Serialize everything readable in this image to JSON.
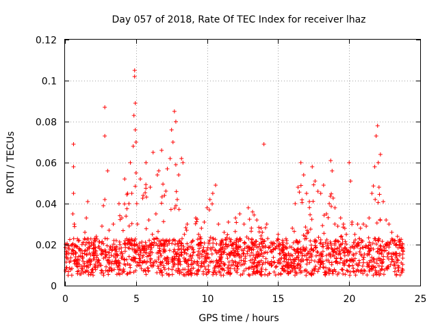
{
  "chart_data": {
    "type": "scatter",
    "title": "Day 057 of 2018, Rate Of TEC Index for receiver lhaz",
    "xlabel": "GPS time / hours",
    "ylabel": "ROTI / TECUs",
    "xlim": [
      0,
      25
    ],
    "ylim": [
      0,
      0.12
    ],
    "x_ticks": [
      0,
      5,
      10,
      15,
      20,
      25
    ],
    "y_ticks": [
      0,
      0.02,
      0.04,
      0.06,
      0.08,
      0.1,
      0.12
    ],
    "x_tick_labels": [
      "0",
      "5",
      "10",
      "15",
      "20",
      "25"
    ],
    "y_tick_labels": [
      "0",
      "0.02",
      "0.04",
      "0.06",
      "0.08",
      "0.1",
      "0.12"
    ],
    "grid": true,
    "marker": "+",
    "color": "#ff0000",
    "series": [
      {
        "name": "ROTI",
        "x": [
          0.1,
          0.2,
          0.3,
          0.4,
          0.5,
          0.55,
          0.6,
          0.6,
          0.6,
          0.65,
          0.7,
          0.75,
          0.8,
          1.0,
          1.2,
          1.4,
          1.5,
          1.6,
          1.7,
          1.8,
          2.0,
          2.2,
          2.4,
          2.6,
          2.7,
          2.8,
          2.8,
          3.0,
          3.1,
          3.2,
          3.4,
          3.6,
          3.8,
          4.0,
          4.2,
          4.4,
          4.5,
          4.6,
          4.7,
          4.8,
          4.85,
          4.9,
          4.9,
          4.95,
          4.95,
          5.0,
          5.0,
          5.05,
          5.1,
          5.3,
          5.5,
          5.7,
          5.9,
          6.0,
          6.2,
          6.4,
          6.5,
          6.6,
          6.8,
          7.0,
          7.2,
          7.4,
          7.5,
          7.6,
          7.7,
          7.8,
          7.8,
          7.9,
          8.0,
          8.2,
          8.3,
          8.4,
          8.6,
          8.8,
          9.0,
          9.2,
          9.4,
          9.6,
          9.8,
          10.0,
          10.2,
          10.4,
          10.6,
          10.8,
          11.0,
          11.2,
          11.5,
          11.8,
          12.0,
          12.3,
          12.6,
          12.9,
          13.2,
          13.5,
          13.8,
          14.0,
          14.2,
          14.5,
          14.8,
          15.0,
          15.3,
          15.6,
          16.0,
          16.2,
          16.4,
          16.6,
          16.8,
          17.0,
          17.2,
          17.4,
          17.6,
          17.8,
          18.0,
          18.2,
          18.4,
          18.6,
          18.7,
          18.8,
          19.0,
          19.2,
          19.4,
          19.6,
          19.8,
          20.0,
          20.1,
          20.2,
          20.4,
          20.6,
          20.8,
          21.0,
          21.2,
          21.4,
          21.6,
          21.8,
          21.9,
          22.0,
          22.05,
          22.1,
          22.2,
          22.4,
          22.6,
          22.8,
          23.0,
          23.2,
          23.4,
          23.6,
          23.8
        ],
        "y": [
          0.015,
          0.013,
          0.018,
          0.012,
          0.02,
          0.035,
          0.058,
          0.069,
          0.045,
          0.03,
          0.016,
          0.014,
          0.019,
          0.022,
          0.017,
          0.026,
          0.033,
          0.041,
          0.021,
          0.015,
          0.018,
          0.024,
          0.019,
          0.029,
          0.039,
          0.087,
          0.073,
          0.056,
          0.027,
          0.019,
          0.03,
          0.022,
          0.04,
          0.033,
          0.052,
          0.045,
          0.04,
          0.06,
          0.045,
          0.068,
          0.083,
          0.102,
          0.105,
          0.089,
          0.076,
          0.07,
          0.055,
          0.04,
          0.03,
          0.052,
          0.044,
          0.06,
          0.032,
          0.048,
          0.065,
          0.035,
          0.054,
          0.056,
          0.066,
          0.044,
          0.057,
          0.062,
          0.076,
          0.07,
          0.085,
          0.08,
          0.059,
          0.042,
          0.054,
          0.062,
          0.06,
          0.025,
          0.03,
          0.019,
          0.022,
          0.033,
          0.025,
          0.028,
          0.031,
          0.038,
          0.042,
          0.045,
          0.049,
          0.03,
          0.022,
          0.026,
          0.031,
          0.02,
          0.033,
          0.035,
          0.03,
          0.038,
          0.036,
          0.032,
          0.028,
          0.069,
          0.03,
          0.021,
          0.018,
          0.025,
          0.02,
          0.022,
          0.028,
          0.04,
          0.048,
          0.06,
          0.054,
          0.045,
          0.041,
          0.058,
          0.051,
          0.046,
          0.045,
          0.049,
          0.035,
          0.04,
          0.061,
          0.056,
          0.038,
          0.029,
          0.033,
          0.03,
          0.025,
          0.06,
          0.051,
          0.031,
          0.025,
          0.03,
          0.028,
          0.03,
          0.029,
          0.033,
          0.045,
          0.058,
          0.073,
          0.078,
          0.06,
          0.048,
          0.064,
          0.041,
          0.032,
          0.03,
          0.026,
          0.022,
          0.024,
          0.02,
          0.018
        ]
      }
    ]
  }
}
